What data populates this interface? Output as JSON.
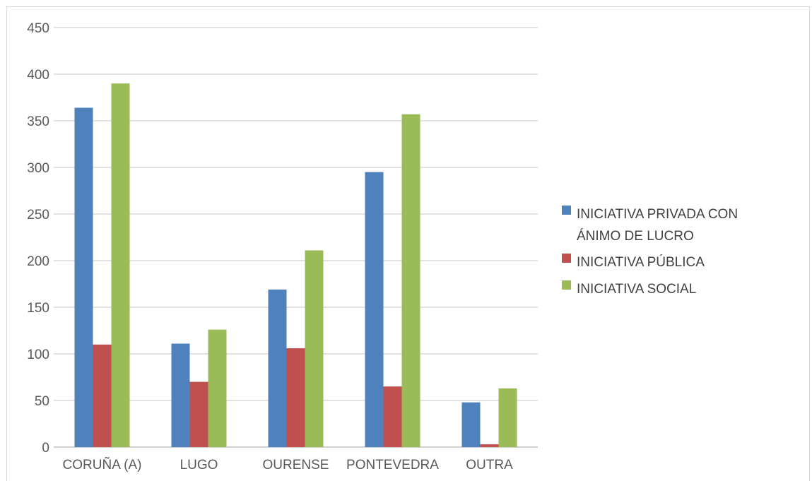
{
  "chart_data": {
    "type": "bar",
    "title": "",
    "xlabel": "",
    "ylabel": "",
    "categories": [
      "CORUÑA (A)",
      "LUGO",
      "OURENSE",
      "PONTEVEDRA",
      "OUTRA"
    ],
    "series": [
      {
        "name": "INICIATIVA PRIVADA CON ÁNIMO DE LUCRO",
        "legend_lines": [
          "INICIATIVA PRIVADA CON",
          "ÁNIMO DE LUCRO"
        ],
        "color": "#4f81bd",
        "values": [
          364,
          111,
          169,
          295,
          48
        ]
      },
      {
        "name": "INICIATIVA PÚBLICA",
        "legend_lines": [
          "INICIATIVA PÚBLICA"
        ],
        "color": "#c0504d",
        "values": [
          110,
          70,
          106,
          65,
          3
        ]
      },
      {
        "name": "INICIATIVA SOCIAL",
        "legend_lines": [
          "INICIATIVA SOCIAL"
        ],
        "color": "#9bbb59",
        "values": [
          390,
          126,
          211,
          357,
          63
        ]
      }
    ],
    "ylim": [
      0,
      450
    ],
    "yticks": [
      0,
      50,
      100,
      150,
      200,
      250,
      300,
      350,
      400,
      450
    ],
    "grid": true,
    "legend_position": "right",
    "gridline_color": "#d9d9d9",
    "axis_color": "#bfbfbf"
  }
}
